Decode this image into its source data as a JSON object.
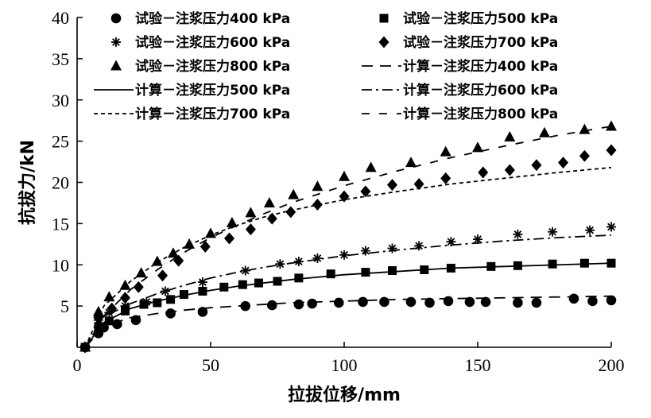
{
  "chart_data": {
    "type": "scatter+line",
    "title": "",
    "xlabel": "拉拔位移/mm",
    "ylabel": "抗拔力/kN",
    "xlim": [
      0,
      200
    ],
    "ylim": [
      0,
      40
    ],
    "x_ticks": [
      0,
      50,
      100,
      150,
      200
    ],
    "y_ticks": [
      5,
      10,
      15,
      20,
      25,
      30,
      35,
      40
    ],
    "grid": false,
    "legend_position": "top",
    "series": [
      {
        "name": "试验－注浆压力400 kPa",
        "kind": "scatter",
        "marker": "circle",
        "x": [
          3,
          8,
          10,
          15,
          22,
          35,
          47,
          63,
          73,
          83,
          88,
          98,
          107,
          115,
          125,
          132,
          139,
          147,
          153,
          165,
          172,
          186,
          193,
          200
        ],
        "y": [
          0,
          1.7,
          2.4,
          2.8,
          3.3,
          4.1,
          4.3,
          5.0,
          5.1,
          5.2,
          5.3,
          5.4,
          5.5,
          5.5,
          5.5,
          5.4,
          5.6,
          5.5,
          5.5,
          5.4,
          5.4,
          5.9,
          5.6,
          5.7
        ]
      },
      {
        "name": "试验－注浆压力500 kPa",
        "kind": "scatter",
        "marker": "square",
        "x": [
          3,
          8,
          12,
          18,
          25,
          30,
          35,
          40,
          47,
          55,
          62,
          68,
          75,
          83,
          95,
          108,
          118,
          130,
          140,
          155,
          165,
          178,
          190,
          200
        ],
        "y": [
          0,
          2.5,
          3.2,
          4.4,
          5.2,
          5.4,
          5.8,
          6.4,
          6.8,
          7.3,
          7.6,
          7.8,
          8.0,
          8.4,
          8.9,
          9.1,
          9.3,
          9.4,
          9.6,
          9.8,
          9.9,
          10.1,
          10.2,
          10.2
        ]
      },
      {
        "name": "试验－注浆压力600 kPa",
        "kind": "scatter",
        "marker": "asterisk",
        "x": [
          3,
          8,
          12,
          18,
          26,
          33,
          47,
          63,
          76,
          83,
          90,
          100,
          108,
          118,
          128,
          140,
          150,
          165,
          178,
          192,
          200
        ],
        "y": [
          0,
          3.3,
          4.2,
          5.0,
          5.5,
          6.8,
          7.9,
          9.3,
          10.1,
          10.4,
          10.8,
          11.2,
          11.7,
          12.0,
          12.3,
          12.8,
          13.1,
          13.7,
          14.0,
          14.2,
          14.6
        ]
      },
      {
        "name": "试验－注浆压力700 kPa",
        "kind": "scatter",
        "marker": "diamond",
        "x": [
          3,
          8,
          13,
          18,
          23,
          32,
          38,
          48,
          57,
          65,
          73,
          80,
          90,
          100,
          108,
          118,
          128,
          138,
          152,
          162,
          172,
          182,
          190,
          200
        ],
        "y": [
          0,
          3.6,
          4.7,
          6.0,
          7.3,
          8.7,
          10.5,
          12.2,
          13.2,
          14.3,
          15.6,
          16.4,
          17.3,
          18.3,
          18.9,
          19.7,
          19.8,
          20.5,
          21.2,
          21.5,
          22.1,
          22.4,
          23.2,
          23.9
        ]
      },
      {
        "name": "试验－注浆压力800 kPa",
        "kind": "scatter",
        "marker": "triangle",
        "x": [
          3,
          8,
          12,
          18,
          24,
          30,
          36,
          42,
          50,
          58,
          65,
          72,
          81,
          90,
          100,
          110,
          125,
          138,
          150,
          162,
          175,
          190,
          200
        ],
        "y": [
          0,
          4.3,
          6.1,
          7.5,
          9.0,
          10.4,
          11.4,
          12.5,
          13.8,
          15.1,
          16.3,
          17.5,
          18.5,
          19.5,
          20.7,
          21.8,
          22.4,
          23.7,
          24.2,
          25.5,
          26.0,
          26.4,
          26.8
        ]
      },
      {
        "name": "计算－注浆压力400 kPa",
        "kind": "line",
        "dash": "long-dash",
        "x": [
          3,
          10,
          20,
          30,
          40,
          50,
          60,
          70,
          80,
          100,
          120,
          140,
          160,
          180,
          200
        ],
        "y": [
          0,
          2.5,
          3.6,
          4.1,
          4.5,
          4.8,
          5.0,
          5.2,
          5.4,
          5.6,
          5.8,
          5.9,
          6.0,
          6.1,
          6.2
        ]
      },
      {
        "name": "计算－注浆压力500 kPa",
        "kind": "line",
        "dash": "solid",
        "x": [
          3,
          10,
          20,
          30,
          40,
          50,
          60,
          70,
          80,
          100,
          120,
          140,
          160,
          180,
          200
        ],
        "y": [
          0,
          3.0,
          4.7,
          5.6,
          6.3,
          6.9,
          7.4,
          7.8,
          8.2,
          8.8,
          9.2,
          9.6,
          9.8,
          10.0,
          10.2
        ]
      },
      {
        "name": "计算－注浆压力600 kPa",
        "kind": "line",
        "dash": "dash-dot",
        "x": [
          3,
          10,
          20,
          30,
          40,
          50,
          60,
          70,
          80,
          100,
          120,
          140,
          160,
          180,
          200
        ],
        "y": [
          0,
          3.7,
          5.3,
          6.5,
          7.5,
          8.4,
          9.1,
          9.7,
          10.2,
          11.1,
          11.8,
          12.4,
          12.9,
          13.3,
          13.6
        ]
      },
      {
        "name": "计算－注浆压力700 kPa",
        "kind": "line",
        "dash": "short-dash",
        "x": [
          3,
          10,
          20,
          30,
          40,
          50,
          60,
          70,
          80,
          100,
          120,
          140,
          160,
          180,
          200
        ],
        "y": [
          0,
          5.0,
          8.0,
          10.3,
          12.1,
          13.6,
          14.8,
          15.8,
          16.6,
          17.9,
          18.9,
          19.8,
          20.5,
          21.2,
          21.8
        ]
      },
      {
        "name": "计算－注浆压力800 kPa",
        "kind": "line",
        "dash": "sparse-dash",
        "x": [
          3,
          10,
          20,
          30,
          40,
          50,
          60,
          70,
          80,
          100,
          120,
          140,
          160,
          180,
          200
        ],
        "y": [
          0,
          3.8,
          7.0,
          9.4,
          11.5,
          13.3,
          14.8,
          16.2,
          17.5,
          19.6,
          21.4,
          23.0,
          24.4,
          25.7,
          26.8
        ]
      }
    ]
  }
}
